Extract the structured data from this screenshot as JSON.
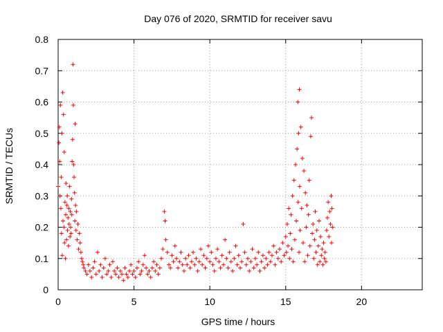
{
  "chart_data": {
    "type": "scatter",
    "title": "Day 076 of 2020, SRMTID for receiver savu",
    "xlabel": "GPS time / hours",
    "ylabel": "SRMTID / TECUs",
    "xlim": [
      0,
      24
    ],
    "ylim": [
      0,
      0.8
    ],
    "xticks": [
      0,
      5,
      10,
      15,
      20
    ],
    "xtick_labels": [
      "0",
      "5",
      "10",
      "15",
      "20"
    ],
    "yticks": [
      0,
      0.1,
      0.2,
      0.3,
      0.4,
      0.5,
      0.6,
      0.7,
      0.8
    ],
    "ytick_labels": [
      "0",
      "0.1",
      "0.2",
      "0.3",
      "0.4",
      "0.5",
      "0.6",
      "0.7",
      "0.8"
    ],
    "grid": true,
    "marker": "+",
    "color": "#ff0000",
    "series": [
      {
        "name": "SRMTID",
        "points": [
          [
            0.0,
            0.33
          ],
          [
            0.05,
            0.47
          ],
          [
            0.08,
            0.52
          ],
          [
            0.1,
            0.41
          ],
          [
            0.12,
            0.3
          ],
          [
            0.15,
            0.59
          ],
          [
            0.18,
            0.26
          ],
          [
            0.2,
            0.36
          ],
          [
            0.22,
            0.18
          ],
          [
            0.25,
            0.5
          ],
          [
            0.27,
            0.11
          ],
          [
            0.3,
            0.63
          ],
          [
            0.32,
            0.22
          ],
          [
            0.35,
            0.56
          ],
          [
            0.38,
            0.2
          ],
          [
            0.4,
            0.44
          ],
          [
            0.42,
            0.15
          ],
          [
            0.45,
            0.28
          ],
          [
            0.48,
            0.1
          ],
          [
            0.5,
            0.24
          ],
          [
            0.52,
            0.34
          ],
          [
            0.55,
            0.16
          ],
          [
            0.58,
            0.27
          ],
          [
            0.6,
            0.3
          ],
          [
            0.62,
            0.19
          ],
          [
            0.65,
            0.23
          ],
          [
            0.68,
            0.14
          ],
          [
            0.7,
            0.26
          ],
          [
            0.72,
            0.21
          ],
          [
            0.75,
            0.33
          ],
          [
            0.78,
            0.17
          ],
          [
            0.8,
            0.25
          ],
          [
            0.82,
            0.2
          ],
          [
            0.85,
            0.18
          ],
          [
            0.88,
            0.29
          ],
          [
            0.9,
            0.24
          ],
          [
            0.92,
            0.41
          ],
          [
            0.95,
            0.48
          ],
          [
            0.98,
            0.72
          ],
          [
            1.0,
            0.59
          ],
          [
            1.02,
            0.4
          ],
          [
            1.05,
            0.36
          ],
          [
            1.08,
            0.31
          ],
          [
            1.1,
            0.22
          ],
          [
            1.12,
            0.53
          ],
          [
            1.15,
            0.27
          ],
          [
            1.18,
            0.19
          ],
          [
            1.2,
            0.25
          ],
          [
            1.25,
            0.16
          ],
          [
            1.3,
            0.21
          ],
          [
            1.35,
            0.13
          ],
          [
            1.4,
            0.18
          ],
          [
            1.45,
            0.15
          ],
          [
            1.5,
            0.12
          ],
          [
            1.55,
            0.1
          ],
          [
            1.6,
            0.09
          ],
          [
            1.65,
            0.08
          ],
          [
            1.7,
            0.07
          ],
          [
            1.8,
            0.06
          ],
          [
            1.9,
            0.05
          ],
          [
            2.0,
            0.08
          ],
          [
            2.1,
            0.06
          ],
          [
            2.2,
            0.04
          ],
          [
            2.3,
            0.07
          ],
          [
            2.4,
            0.09
          ],
          [
            2.5,
            0.05
          ],
          [
            2.6,
            0.12
          ],
          [
            2.7,
            0.06
          ],
          [
            2.8,
            0.08
          ],
          [
            2.9,
            0.04
          ],
          [
            3.0,
            0.07
          ],
          [
            3.1,
            0.1
          ],
          [
            3.2,
            0.05
          ],
          [
            3.3,
            0.06
          ],
          [
            3.4,
            0.08
          ],
          [
            3.5,
            0.04
          ],
          [
            3.6,
            0.09
          ],
          [
            3.7,
            0.06
          ],
          [
            3.8,
            0.05
          ],
          [
            3.9,
            0.07
          ],
          [
            4.0,
            0.04
          ],
          [
            4.1,
            0.06
          ],
          [
            4.2,
            0.05
          ],
          [
            4.3,
            0.03
          ],
          [
            4.4,
            0.07
          ],
          [
            4.5,
            0.05
          ],
          [
            4.6,
            0.04
          ],
          [
            4.7,
            0.06
          ],
          [
            4.8,
            0.08
          ],
          [
            4.9,
            0.05
          ],
          [
            5.0,
            0.06
          ],
          [
            5.1,
            0.04
          ],
          [
            5.2,
            0.07
          ],
          [
            5.3,
            0.09
          ],
          [
            5.4,
            0.05
          ],
          [
            5.5,
            0.06
          ],
          [
            5.6,
            0.08
          ],
          [
            5.7,
            0.11
          ],
          [
            5.8,
            0.07
          ],
          [
            5.9,
            0.05
          ],
          [
            6.0,
            0.06
          ],
          [
            6.1,
            0.04
          ],
          [
            6.2,
            0.07
          ],
          [
            6.3,
            0.09
          ],
          [
            6.4,
            0.06
          ],
          [
            6.5,
            0.08
          ],
          [
            6.6,
            0.05
          ],
          [
            6.7,
            0.07
          ],
          [
            6.8,
            0.1
          ],
          [
            6.9,
            0.13
          ],
          [
            7.0,
            0.25
          ],
          [
            7.05,
            0.22
          ],
          [
            7.1,
            0.16
          ],
          [
            7.2,
            0.12
          ],
          [
            7.3,
            0.08
          ],
          [
            7.4,
            0.07
          ],
          [
            7.5,
            0.11
          ],
          [
            7.6,
            0.09
          ],
          [
            7.7,
            0.14
          ],
          [
            7.8,
            0.1
          ],
          [
            7.9,
            0.07
          ],
          [
            8.0,
            0.09
          ],
          [
            8.1,
            0.12
          ],
          [
            8.2,
            0.08
          ],
          [
            8.3,
            0.06
          ],
          [
            8.4,
            0.1
          ],
          [
            8.5,
            0.08
          ],
          [
            8.6,
            0.11
          ],
          [
            8.7,
            0.07
          ],
          [
            8.8,
            0.09
          ],
          [
            8.9,
            0.12
          ],
          [
            9.0,
            0.08
          ],
          [
            9.1,
            0.1
          ],
          [
            9.2,
            0.06
          ],
          [
            9.3,
            0.09
          ],
          [
            9.4,
            0.13
          ],
          [
            9.5,
            0.08
          ],
          [
            9.6,
            0.11
          ],
          [
            9.7,
            0.07
          ],
          [
            9.8,
            0.1
          ],
          [
            9.9,
            0.14
          ],
          [
            10.0,
            0.09
          ],
          [
            10.1,
            0.12
          ],
          [
            10.2,
            0.08
          ],
          [
            10.3,
            0.06
          ],
          [
            10.4,
            0.1
          ],
          [
            10.5,
            0.13
          ],
          [
            10.6,
            0.09
          ],
          [
            10.7,
            0.07
          ],
          [
            10.8,
            0.11
          ],
          [
            10.9,
            0.08
          ],
          [
            11.0,
            0.16
          ],
          [
            11.1,
            0.1
          ],
          [
            11.2,
            0.07
          ],
          [
            11.3,
            0.12
          ],
          [
            11.4,
            0.09
          ],
          [
            11.5,
            0.06
          ],
          [
            11.6,
            0.1
          ],
          [
            11.7,
            0.14
          ],
          [
            11.8,
            0.08
          ],
          [
            11.9,
            0.11
          ],
          [
            12.0,
            0.07
          ],
          [
            12.1,
            0.09
          ],
          [
            12.2,
            0.21
          ],
          [
            12.3,
            0.12
          ],
          [
            12.4,
            0.08
          ],
          [
            12.5,
            0.1
          ],
          [
            12.6,
            0.06
          ],
          [
            12.7,
            0.09
          ],
          [
            12.8,
            0.13
          ],
          [
            12.9,
            0.07
          ],
          [
            13.0,
            0.1
          ],
          [
            13.1,
            0.08
          ],
          [
            13.2,
            0.12
          ],
          [
            13.3,
            0.06
          ],
          [
            13.4,
            0.09
          ],
          [
            13.5,
            0.11
          ],
          [
            13.6,
            0.07
          ],
          [
            13.7,
            0.1
          ],
          [
            13.8,
            0.08
          ],
          [
            13.9,
            0.12
          ],
          [
            14.0,
            0.09
          ],
          [
            14.1,
            0.11
          ],
          [
            14.2,
            0.14
          ],
          [
            14.3,
            0.08
          ],
          [
            14.4,
            0.12
          ],
          [
            14.5,
            0.1
          ],
          [
            14.6,
            0.13
          ],
          [
            14.7,
            0.09
          ],
          [
            14.8,
            0.15
          ],
          [
            14.9,
            0.11
          ],
          [
            15.0,
            0.17
          ],
          [
            15.05,
            0.12
          ],
          [
            15.1,
            0.21
          ],
          [
            15.15,
            0.14
          ],
          [
            15.2,
            0.26
          ],
          [
            15.25,
            0.1
          ],
          [
            15.3,
            0.18
          ],
          [
            15.35,
            0.24
          ],
          [
            15.4,
            0.13
          ],
          [
            15.45,
            0.3
          ],
          [
            15.5,
            0.09
          ],
          [
            15.55,
            0.35
          ],
          [
            15.6,
            0.16
          ],
          [
            15.65,
            0.4
          ],
          [
            15.7,
            0.22
          ],
          [
            15.75,
            0.45
          ],
          [
            15.8,
            0.6
          ],
          [
            15.82,
            0.28
          ],
          [
            15.85,
            0.5
          ],
          [
            15.88,
            0.12
          ],
          [
            15.9,
            0.64
          ],
          [
            15.92,
            0.33
          ],
          [
            15.95,
            0.19
          ],
          [
            16.0,
            0.52
          ],
          [
            16.05,
            0.26
          ],
          [
            16.1,
            0.42
          ],
          [
            16.15,
            0.15
          ],
          [
            16.2,
            0.38
          ],
          [
            16.25,
            0.09
          ],
          [
            16.3,
            0.31
          ],
          [
            16.35,
            0.2
          ],
          [
            16.4,
            0.27
          ],
          [
            16.45,
            0.11
          ],
          [
            16.5,
            0.24
          ],
          [
            16.55,
            0.35
          ],
          [
            16.6,
            0.14
          ],
          [
            16.65,
            0.49
          ],
          [
            16.7,
            0.55
          ],
          [
            16.75,
            0.18
          ],
          [
            16.8,
            0.21
          ],
          [
            16.85,
            0.1
          ],
          [
            16.9,
            0.16
          ],
          [
            16.95,
            0.25
          ],
          [
            17.0,
            0.12
          ],
          [
            17.05,
            0.19
          ],
          [
            17.1,
            0.08
          ],
          [
            17.15,
            0.14
          ],
          [
            17.2,
            0.22
          ],
          [
            17.25,
            0.09
          ],
          [
            17.3,
            0.17
          ],
          [
            17.35,
            0.11
          ],
          [
            17.4,
            0.13
          ],
          [
            17.45,
            0.08
          ],
          [
            17.5,
            0.15
          ],
          [
            17.55,
            0.1
          ],
          [
            17.6,
            0.12
          ],
          [
            17.65,
            0.09
          ],
          [
            17.7,
            0.19
          ],
          [
            17.75,
            0.23
          ],
          [
            17.8,
            0.28
          ],
          [
            17.85,
            0.17
          ],
          [
            17.9,
            0.25
          ],
          [
            17.95,
            0.21
          ],
          [
            18.0,
            0.3
          ],
          [
            18.02,
            0.15
          ],
          [
            18.05,
            0.26
          ],
          [
            18.08,
            0.2
          ]
        ]
      }
    ]
  }
}
